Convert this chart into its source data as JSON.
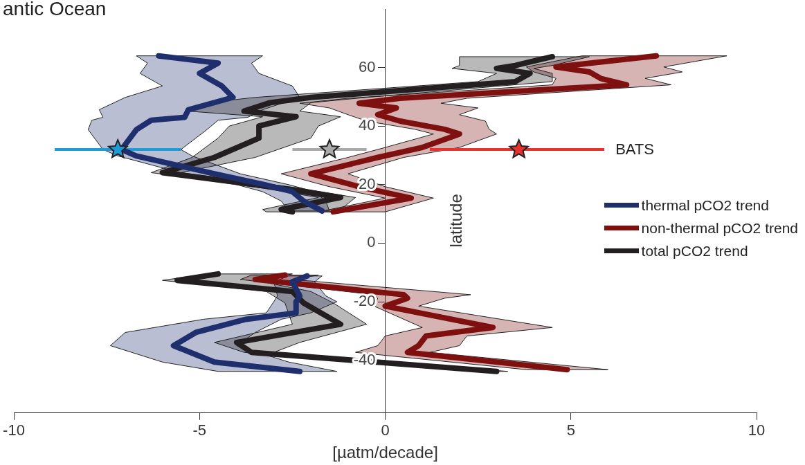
{
  "chart_data": {
    "type": "line",
    "title": "antic Ocean",
    "xlabel": "[µatm/decade]",
    "ylabel": "latitude",
    "orientation": "horizontal",
    "xlim": [
      -10,
      10
    ],
    "xticks": [
      -10,
      -5,
      0,
      5,
      10
    ],
    "ylim": [
      -58,
      80
    ],
    "yticks": [
      -40,
      -20,
      0,
      20,
      40,
      60
    ],
    "grid": false,
    "legend": "right",
    "marker": "none",
    "annotations": [
      "BATS"
    ],
    "series": [
      {
        "name": "thermal pCO2 trend",
        "color": "#1f2f6e",
        "x": [
          64,
          61.5,
          58,
          53.7,
          49.8,
          45.6,
          43,
          42,
          38.8,
          32,
          29.8,
          23.7,
          20,
          17.6,
          14.4,
          11,
          0,
          -11.2,
          -13.2,
          -18,
          -20,
          -23.8,
          -26,
          -30.5,
          -35,
          -40.6,
          -43.8
        ],
        "values": [
          -6.1,
          -4.5,
          -5.0,
          -4.4,
          -4.1,
          -5.3,
          -5.4,
          -6.3,
          -6.7,
          -7.1,
          -6.7,
          -4.6,
          -3.25,
          -2.5,
          -2.2,
          -1.7,
          null,
          -2.1,
          -2.5,
          -2.3,
          -2.4,
          -2.4,
          -3.75,
          -5.1,
          -5.7,
          -4.6,
          -2.3
        ],
        "lower": [
          -6.7,
          -6.4,
          -6.6,
          -6.0,
          -7.0,
          -7.7,
          -7.6,
          -7.9,
          -8.0,
          -7.6,
          -7.2,
          -5.4,
          -4.0,
          -3.3,
          -2.8,
          -2.6,
          null,
          -2.6,
          -3.0,
          -2.9,
          -3.0,
          -3.2,
          -4.9,
          -7.0,
          -7.4,
          -6.0,
          -4.5
        ],
        "upper": [
          -3.3,
          -3.6,
          -3.4,
          -2.5,
          -2.3,
          -3.3,
          -3.7,
          -4.5,
          -4.8,
          -5.5,
          -5.2,
          -3.9,
          -2.6,
          -1.9,
          -1.6,
          -1.5,
          null,
          -1.7,
          -1.9,
          -1.6,
          -1.3,
          -2.0,
          -2.8,
          -3.5,
          -4.0,
          -2.6,
          -1.3
        ]
      },
      {
        "name": "non-thermal pCO2 trend",
        "color": "#7f1010",
        "x": [
          64,
          60.2,
          58.5,
          56.3,
          54.1,
          49.5,
          47.8,
          46.2,
          43.9,
          41.7,
          38.9,
          37.3,
          32.7,
          29.3,
          23.7,
          19.3,
          15.4,
          10.7,
          0,
          -10.9,
          -12.4,
          -17.6,
          -18.8,
          -21.5,
          -28.8,
          -31.7,
          -35,
          -37.3,
          -43.2
        ],
        "values": [
          7.3,
          4.6,
          5.5,
          5.8,
          6.5,
          0.4,
          -0.7,
          0.3,
          -0.2,
          0.4,
          1.6,
          2.0,
          1.0,
          -0.2,
          -2.0,
          -0.7,
          0.7,
          -1.4,
          null,
          -2.7,
          -3.5,
          0.5,
          0.6,
          0.0,
          2.9,
          1.1,
          0.9,
          0.6,
          4.9
        ],
        "lower": [
          5.3,
          3.8,
          4.0,
          4.6,
          4.5,
          -1.0,
          -2.3,
          -1.5,
          -1.0,
          -0.5,
          0.8,
          1.3,
          0.0,
          -1.0,
          -2.8,
          -1.5,
          0.0,
          -1.8,
          null,
          -3.6,
          -3.9,
          -0.3,
          -0.2,
          -0.3,
          1.0,
          0.0,
          -0.2,
          -0.8,
          3.8
        ],
        "upper": [
          9.2,
          7.5,
          8.0,
          7.0,
          7.7,
          2.2,
          1.5,
          2.5,
          2.0,
          2.7,
          2.8,
          3.0,
          2.0,
          0.5,
          -1.0,
          0.0,
          1.3,
          0.0,
          null,
          -1.8,
          -2.5,
          2.3,
          1.6,
          0.9,
          4.5,
          2.2,
          2.0,
          1.2,
          6.0
        ]
      },
      {
        "name": "total pCO2 trend",
        "color": "#231f20",
        "x": [
          63.7,
          60.7,
          59.7,
          58,
          55.2,
          49.8,
          48,
          45.1,
          43.2,
          40,
          35.9,
          29.3,
          24.1,
          18.8,
          15.6,
          11.5,
          10.7,
          0,
          -10.5,
          -12.7,
          -16.5,
          -20.4,
          -27.7,
          -33.9,
          -37.3,
          -43.8
        ],
        "values": [
          4.5,
          3.5,
          3.0,
          3.9,
          3.5,
          -2.0,
          -3.1,
          -3.8,
          -2.4,
          -3.4,
          -3.4,
          -4.6,
          -6.0,
          -2.8,
          -1.2,
          -2.8,
          -2.5,
          null,
          -4.5,
          -5.6,
          -2.5,
          -2.2,
          -1.2,
          -4.0,
          -3.6,
          3.0
        ],
        "lower": [
          2.0,
          2.0,
          1.8,
          3.0,
          2.5,
          -3.5,
          -4.8,
          -5.3,
          -3.3,
          -4.2,
          -4.5,
          -5.2,
          -6.3,
          -3.3,
          -1.8,
          -3.3,
          -3.2,
          null,
          -4.8,
          -6.0,
          -3.2,
          -2.7,
          -2.5,
          -4.6,
          -3.8,
          2.7
        ],
        "upper": [
          5.5,
          4.5,
          4.0,
          4.5,
          4.5,
          -0.5,
          -2.0,
          -2.3,
          -1.2,
          -1.8,
          -2.0,
          -3.5,
          -5.5,
          -2.3,
          -0.8,
          -1.2,
          -1.2,
          null,
          -2.5,
          -3.5,
          -2.0,
          -1.4,
          -0.5,
          -2.3,
          -3.0,
          3.3
        ]
      },
      {
        "type": "scatter",
        "marker": "star",
        "color": "#1e9bd7",
        "x": [
          32
        ],
        "values": [
          -7.2
        ],
        "errors": [
          [
            -8.9,
            -5.5
          ]
        ]
      },
      {
        "type": "scatter",
        "marker": "star",
        "color": "#a9a9a9",
        "x": [
          32
        ],
        "values": [
          -1.5
        ],
        "errors": [
          [
            -2.5,
            -0.5
          ]
        ]
      },
      {
        "type": "scatter",
        "marker": "star",
        "color": "#e8322e",
        "x": [
          32
        ],
        "values": [
          3.6
        ],
        "errors": [
          [
            1.2,
            5.9
          ]
        ]
      }
    ]
  }
}
